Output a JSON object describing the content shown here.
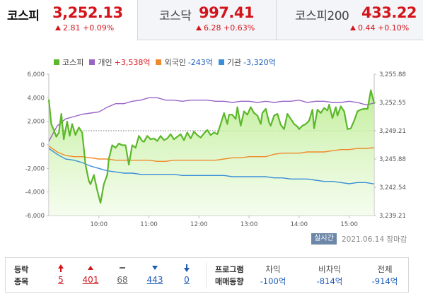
{
  "tabs": [
    {
      "name": "코스피",
      "value": "3,252.13",
      "change": "2.81 +0.09%",
      "active": true
    },
    {
      "name": "코스닥",
      "value": "997.41",
      "change": "6.28 +0.63%",
      "active": false
    },
    {
      "name": "코스피200",
      "value": "433.22",
      "change": "0.44 +0.10%",
      "active": false
    }
  ],
  "legend": [
    {
      "name": "코스피",
      "value": "",
      "color": "#5cb82a",
      "value_color": ""
    },
    {
      "name": "개인",
      "value": "+3,538억",
      "color": "#9b63c6",
      "value_color": "red"
    },
    {
      "name": "외국인",
      "value": "-243억",
      "color": "#ef8a2c",
      "value_color": "blue"
    },
    {
      "name": "기관",
      "value": "-3,320억",
      "color": "#3a8fd8",
      "value_color": "blue"
    }
  ],
  "status": {
    "badge": "실시간",
    "date": "2021.06.14 장마감"
  },
  "chart_data": {
    "type": "line",
    "x_tick_labels": [
      "10:00",
      "11:00",
      "12:00",
      "13:00",
      "14:00",
      "15:00"
    ],
    "x_ticks_min": [
      60,
      120,
      180,
      240,
      300,
      360
    ],
    "xlim_min": [
      0,
      390
    ],
    "left_axis": {
      "ticks": [
        6000,
        4000,
        2000,
        0,
        -2000,
        -4000,
        -6000
      ],
      "tick_labels": [
        "6,000",
        "4,000",
        "2,000",
        "0",
        "-2,000",
        "-4,000",
        "-6,000"
      ],
      "ylim": [
        -6000,
        6000
      ]
    },
    "right_axis": {
      "ticks": [
        3255.88,
        3252.55,
        3249.21,
        3245.88,
        3242.54,
        3239.21
      ],
      "tick_labels": [
        "3,255.88",
        "3,252.55",
        "3,249.21",
        "3,245.88",
        "3,242.54",
        "3,239.21"
      ],
      "ylim": [
        3239.21,
        3255.88
      ]
    },
    "reference_line": 3249.21,
    "series": [
      {
        "name": "코스피",
        "axis": "right",
        "color": "#5cb82a",
        "x": [
          0,
          3,
          6,
          9,
          12,
          15,
          18,
          22,
          25,
          28,
          32,
          36,
          40,
          44,
          48,
          50,
          54,
          58,
          62,
          66,
          70,
          72,
          76,
          80,
          84,
          88,
          92,
          96,
          100,
          104,
          108,
          112,
          114,
          118,
          122,
          126,
          130,
          134,
          138,
          142,
          146,
          150,
          154,
          158,
          162,
          166,
          170,
          174,
          178,
          182,
          186,
          190,
          194,
          198,
          202,
          206,
          210,
          214,
          216,
          220,
          224,
          226,
          230,
          234,
          238,
          242,
          246,
          250,
          254,
          256,
          260,
          264,
          266,
          270,
          274,
          278,
          282,
          286,
          290,
          294,
          298,
          300,
          304,
          308,
          312,
          316,
          318,
          322,
          326,
          330,
          334,
          336,
          340,
          344,
          346,
          350,
          354,
          358,
          362,
          366,
          370,
          374,
          378,
          382,
          386,
          390
        ],
        "y": [
          3252.9,
          3250.0,
          3249.3,
          3248.5,
          3249.0,
          3251.2,
          3248.2,
          3250.3,
          3248.6,
          3250.0,
          3248.7,
          3249.6,
          3249.0,
          3245.2,
          3243.3,
          3242.9,
          3244.0,
          3242.2,
          3240.7,
          3242.9,
          3244.0,
          3245.9,
          3247.5,
          3247.2,
          3247.7,
          3247.5,
          3247.5,
          3245.2,
          3247.5,
          3247.2,
          3248.6,
          3248.0,
          3247.9,
          3248.6,
          3248.2,
          3248.3,
          3248.0,
          3248.6,
          3248.1,
          3248.3,
          3248.8,
          3248.2,
          3248.5,
          3248.8,
          3248.1,
          3249.0,
          3248.3,
          3249.1,
          3248.7,
          3248.4,
          3248.9,
          3249.3,
          3248.7,
          3249.0,
          3248.8,
          3250.0,
          3251.3,
          3250.0,
          3251.1,
          3251.1,
          3250.6,
          3252.0,
          3249.8,
          3251.5,
          3251.1,
          3252.0,
          3251.3,
          3251.0,
          3250.0,
          3251.3,
          3251.8,
          3250.2,
          3249.8,
          3251.0,
          3251.2,
          3249.9,
          3249.4,
          3251.2,
          3250.6,
          3250.0,
          3249.7,
          3249.4,
          3249.8,
          3250.0,
          3250.4,
          3251.7,
          3249.5,
          3251.7,
          3251.3,
          3251.9,
          3251.6,
          3252.3,
          3250.7,
          3252.0,
          3251.0,
          3252.1,
          3251.5,
          3249.4,
          3249.5,
          3250.4,
          3251.5,
          3251.7,
          3251.8,
          3251.8,
          3254.0,
          3252.4
        ]
      },
      {
        "name": "개인",
        "axis": "left",
        "color": "#9b63c6",
        "x": [
          0,
          10,
          20,
          30,
          40,
          50,
          60,
          70,
          80,
          90,
          100,
          110,
          120,
          130,
          140,
          150,
          160,
          170,
          180,
          190,
          200,
          210,
          220,
          230,
          240,
          250,
          260,
          270,
          280,
          290,
          300,
          310,
          320,
          330,
          340,
          350,
          360,
          370,
          380,
          390
        ],
        "y": [
          300,
          1600,
          2200,
          2400,
          2600,
          2700,
          2800,
          3200,
          3500,
          3500,
          3700,
          3800,
          4000,
          4000,
          3800,
          3800,
          3700,
          3800,
          3800,
          3800,
          3700,
          3700,
          3600,
          3700,
          3700,
          3600,
          3700,
          3600,
          3700,
          3700,
          3800,
          3600,
          3700,
          3700,
          3600,
          3600,
          3700,
          3600,
          3400,
          3538
        ]
      },
      {
        "name": "외국인",
        "axis": "left",
        "color": "#ef8a2c",
        "x": [
          0,
          10,
          20,
          30,
          40,
          50,
          60,
          70,
          80,
          90,
          100,
          110,
          120,
          130,
          140,
          150,
          160,
          170,
          180,
          190,
          200,
          210,
          220,
          230,
          240,
          250,
          260,
          270,
          280,
          290,
          300,
          310,
          320,
          330,
          340,
          350,
          360,
          370,
          380,
          390
        ],
        "y": [
          -100,
          -600,
          -900,
          -1000,
          -1000,
          -1100,
          -1200,
          -1200,
          -1300,
          -1300,
          -1300,
          -1300,
          -1300,
          -1400,
          -1400,
          -1300,
          -1300,
          -1300,
          -1300,
          -1300,
          -1300,
          -1200,
          -1100,
          -1100,
          -1000,
          -1000,
          -1000,
          -800,
          -700,
          -700,
          -700,
          -600,
          -600,
          -600,
          -500,
          -400,
          -400,
          -300,
          -300,
          -243
        ]
      },
      {
        "name": "기관",
        "axis": "left",
        "color": "#3a8fd8",
        "x": [
          0,
          10,
          20,
          30,
          40,
          50,
          60,
          70,
          80,
          90,
          100,
          110,
          120,
          130,
          140,
          150,
          160,
          170,
          180,
          190,
          200,
          210,
          220,
          230,
          240,
          250,
          260,
          270,
          280,
          290,
          300,
          310,
          320,
          330,
          340,
          350,
          360,
          370,
          380,
          390
        ],
        "y": [
          -300,
          -800,
          -1200,
          -1300,
          -1500,
          -1800,
          -2000,
          -2200,
          -2300,
          -2400,
          -2400,
          -2500,
          -2500,
          -2500,
          -2500,
          -2500,
          -2600,
          -2600,
          -2600,
          -2600,
          -2600,
          -2600,
          -2700,
          -2700,
          -2700,
          -2700,
          -2700,
          -2800,
          -2800,
          -2900,
          -2900,
          -2900,
          -3000,
          -3100,
          -3100,
          -3200,
          -3300,
          -3200,
          -3200,
          -3320
        ]
      }
    ],
    "legend_position": "top-left",
    "grid": false
  },
  "market_stats": {
    "labels": [
      "등락",
      "종목"
    ],
    "items": [
      {
        "symbol": "upper-limit",
        "count": "5",
        "color": "red"
      },
      {
        "symbol": "up",
        "count": "401",
        "color": "red"
      },
      {
        "symbol": "flat",
        "count": "68",
        "color": "gray"
      },
      {
        "symbol": "down",
        "count": "443",
        "color": "blue"
      },
      {
        "symbol": "lower-limit",
        "count": "0",
        "color": "blue"
      }
    ]
  },
  "program_trading": {
    "labels": [
      "프로그램",
      "매매동향"
    ],
    "items": [
      {
        "label": "차익",
        "value": "-100억"
      },
      {
        "label": "비차익",
        "value": "-814억"
      },
      {
        "label": "전체",
        "value": "-914억"
      }
    ]
  }
}
